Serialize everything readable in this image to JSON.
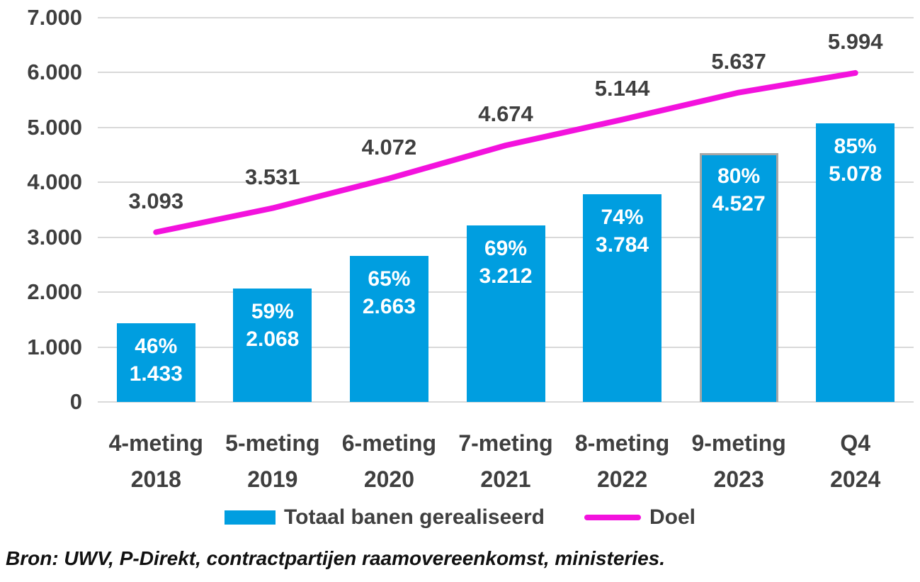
{
  "chart_data": {
    "type": "bar",
    "title": "",
    "xlabel": "",
    "ylabel": "",
    "grid": true,
    "legend_position": "bottom",
    "categories": [
      {
        "label": "4-meting",
        "sublabel": "2018"
      },
      {
        "label": "5-meting",
        "sublabel": "2019"
      },
      {
        "label": "6-meting",
        "sublabel": "2020"
      },
      {
        "label": "7-meting",
        "sublabel": "2021"
      },
      {
        "label": "8-meting",
        "sublabel": "2022"
      },
      {
        "label": "9-meting",
        "sublabel": "2023"
      },
      {
        "label": "Q4 2024",
        "sublabel": ""
      }
    ],
    "y_axis": {
      "min": 0,
      "max": 7000,
      "step": 1000,
      "tick_labels": [
        "0",
        "1.000",
        "2.000",
        "3.000",
        "4.000",
        "5.000",
        "6.000",
        "7.000"
      ]
    },
    "series": [
      {
        "name": "Totaal banen gerealiseerd",
        "type": "bar",
        "color": "#009ee0",
        "label_color": "#ffffff",
        "values": [
          1433,
          2068,
          2663,
          3212,
          3784,
          4527,
          5078
        ],
        "value_labels": [
          "1.433",
          "2.068",
          "2.663",
          "3.212",
          "3.784",
          "4.527",
          "5.078"
        ],
        "pct_labels": [
          "46%",
          "59%",
          "65%",
          "69%",
          "74%",
          "80%",
          "85%"
        ],
        "highlight_index": 5,
        "highlight_border_color": "#a6a6a6"
      },
      {
        "name": "Doel",
        "type": "line",
        "color": "#f312dd",
        "label_color": "#3f3f3f",
        "values": [
          3093,
          3531,
          4072,
          4674,
          5144,
          5637,
          5994
        ],
        "value_labels": [
          "3.093",
          "3.531",
          "4.072",
          "4.674",
          "5.144",
          "5.637",
          "5.994"
        ]
      }
    ]
  },
  "colors": {
    "grid": "#d9d9d9",
    "axis_text": "#3f3f3f",
    "background": "#ffffff"
  },
  "footer": {
    "source": "Bron: UWV, P-Direkt, contractpartijen raamovereenkomst, ministeries."
  }
}
